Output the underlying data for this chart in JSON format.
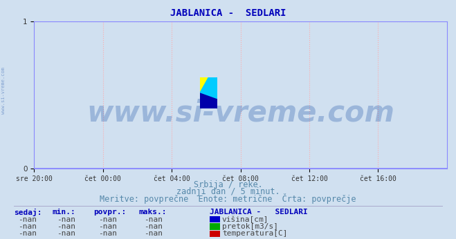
{
  "title": "JABLANICA -  SEDLARI",
  "title_color": "#0000bb",
  "title_fontsize": 10,
  "background_color": "#d0e0f0",
  "plot_bg_color": "#d0e0f0",
  "xlim_labels": [
    "sre 20:00",
    "čet 00:00",
    "čet 04:00",
    "čet 08:00",
    "čet 12:00",
    "čet 16:00"
  ],
  "xlim": [
    0,
    288
  ],
  "ylim": [
    0,
    1
  ],
  "yticks": [
    0,
    1
  ],
  "grid_color": "#ffaaaa",
  "grid_linestyle": ":",
  "axis_color": "#cc0000",
  "spine_color": "#8888ff",
  "watermark": "www.si-vreme.com",
  "watermark_color": "#2255aa",
  "watermark_alpha": 0.3,
  "watermark_fontsize": 30,
  "subtitle1": "Srbija / reke.",
  "subtitle2": "zadnji dan / 5 minut.",
  "subtitle3": "Meritve: povprečne  Enote: metrične  Črta: povprečje",
  "subtitle_color": "#5588aa",
  "subtitle_fontsize": 8.5,
  "sidebar_text": "www.si-vreme.com",
  "sidebar_color": "#2255aa",
  "legend_title": "JABLANICA -   SEDLARI",
  "legend_items": [
    {
      "label": "višina[cm]",
      "color": "#0000cc"
    },
    {
      "label": "pretok[m3/s]",
      "color": "#00aa00"
    },
    {
      "label": "temperatura[C]",
      "color": "#cc0000"
    }
  ],
  "table_headers": [
    "sedaj:",
    "min.:",
    "povpr.:",
    "maks.:"
  ],
  "table_rows": [
    [
      "-nan",
      "-nan",
      "-nan",
      "-nan"
    ],
    [
      "-nan",
      "-nan",
      "-nan",
      "-nan"
    ],
    [
      "-nan",
      "-nan",
      "-nan",
      "-nan"
    ]
  ],
  "table_color": "#0000bb",
  "table_val_color": "#444444",
  "table_fontsize": 8,
  "logo_colors": {
    "yellow": "#ffff00",
    "cyan": "#00ccff",
    "navy": "#0000aa",
    "mid": "#006699"
  }
}
